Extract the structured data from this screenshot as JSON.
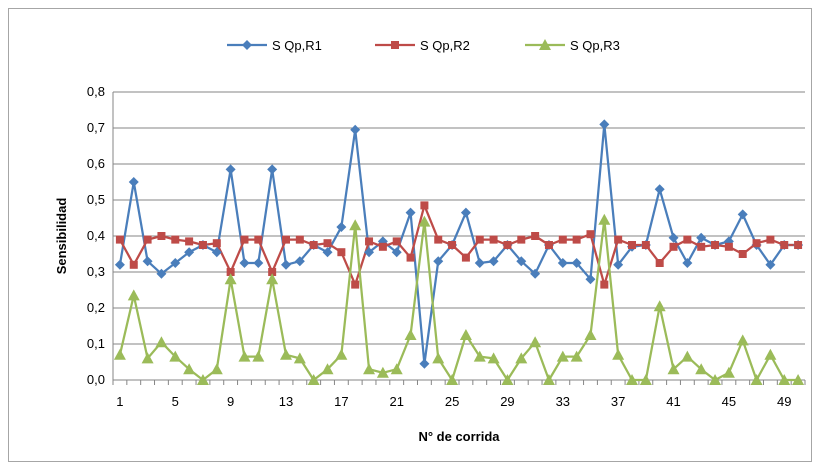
{
  "chart_data": {
    "type": "line",
    "xlabel": "N° de corrida",
    "ylabel": "Sensibilidad",
    "ylim": [
      0,
      0.8
    ],
    "yticks": [
      "0,0",
      "0,1",
      "0,2",
      "0,3",
      "0,4",
      "0,5",
      "0,6",
      "0,7",
      "0,8"
    ],
    "xticks": [
      1,
      5,
      9,
      13,
      17,
      21,
      25,
      29,
      33,
      37,
      41,
      45,
      49
    ],
    "grid": true,
    "legend_position": "top",
    "x": [
      1,
      2,
      3,
      4,
      5,
      6,
      7,
      8,
      9,
      10,
      11,
      12,
      13,
      14,
      15,
      16,
      17,
      18,
      19,
      20,
      21,
      22,
      23,
      24,
      25,
      26,
      27,
      28,
      29,
      30,
      31,
      32,
      33,
      34,
      35,
      36,
      37,
      38,
      39,
      40,
      41,
      42,
      43,
      44,
      45,
      46,
      47,
      48,
      49,
      50
    ],
    "series": [
      {
        "name": "S Qp,R1",
        "color": "#4a7ebb",
        "marker": "diamond",
        "values": [
          0.32,
          0.55,
          0.33,
          0.295,
          0.325,
          0.355,
          0.375,
          0.355,
          0.585,
          0.325,
          0.325,
          0.585,
          0.32,
          0.33,
          0.375,
          0.355,
          0.425,
          0.695,
          0.355,
          0.385,
          0.355,
          0.465,
          0.045,
          0.33,
          0.375,
          0.465,
          0.325,
          0.33,
          0.375,
          0.33,
          0.295,
          0.375,
          0.325,
          0.325,
          0.28,
          0.71,
          0.32,
          0.37,
          0.375,
          0.53,
          0.395,
          0.325,
          0.395,
          0.375,
          0.385,
          0.46,
          0.375,
          0.32,
          0.375,
          0.375
        ]
      },
      {
        "name": "S Qp,R2",
        "color": "#be4b48",
        "marker": "square",
        "values": [
          0.39,
          0.32,
          0.39,
          0.4,
          0.39,
          0.385,
          0.375,
          0.38,
          0.3,
          0.39,
          0.39,
          0.3,
          0.39,
          0.39,
          0.375,
          0.38,
          0.355,
          0.265,
          0.385,
          0.37,
          0.385,
          0.34,
          0.485,
          0.39,
          0.375,
          0.34,
          0.39,
          0.39,
          0.375,
          0.39,
          0.4,
          0.375,
          0.39,
          0.39,
          0.405,
          0.265,
          0.39,
          0.375,
          0.375,
          0.325,
          0.37,
          0.39,
          0.37,
          0.375,
          0.37,
          0.35,
          0.38,
          0.39,
          0.375,
          0.375
        ]
      },
      {
        "name": "S Qp,R3",
        "color": "#9bbb59",
        "marker": "triangle",
        "values": [
          0.07,
          0.235,
          0.06,
          0.105,
          0.065,
          0.03,
          0.0,
          0.03,
          0.28,
          0.065,
          0.065,
          0.28,
          0.07,
          0.06,
          0.0,
          0.03,
          0.07,
          0.43,
          0.03,
          0.02,
          0.03,
          0.125,
          0.44,
          0.06,
          0.0,
          0.125,
          0.065,
          0.06,
          0.0,
          0.06,
          0.105,
          0.0,
          0.065,
          0.065,
          0.125,
          0.445,
          0.07,
          0.0,
          0.0,
          0.205,
          0.03,
          0.065,
          0.03,
          0.0,
          0.02,
          0.11,
          0.0,
          0.07,
          0.0,
          0.0
        ]
      }
    ]
  }
}
